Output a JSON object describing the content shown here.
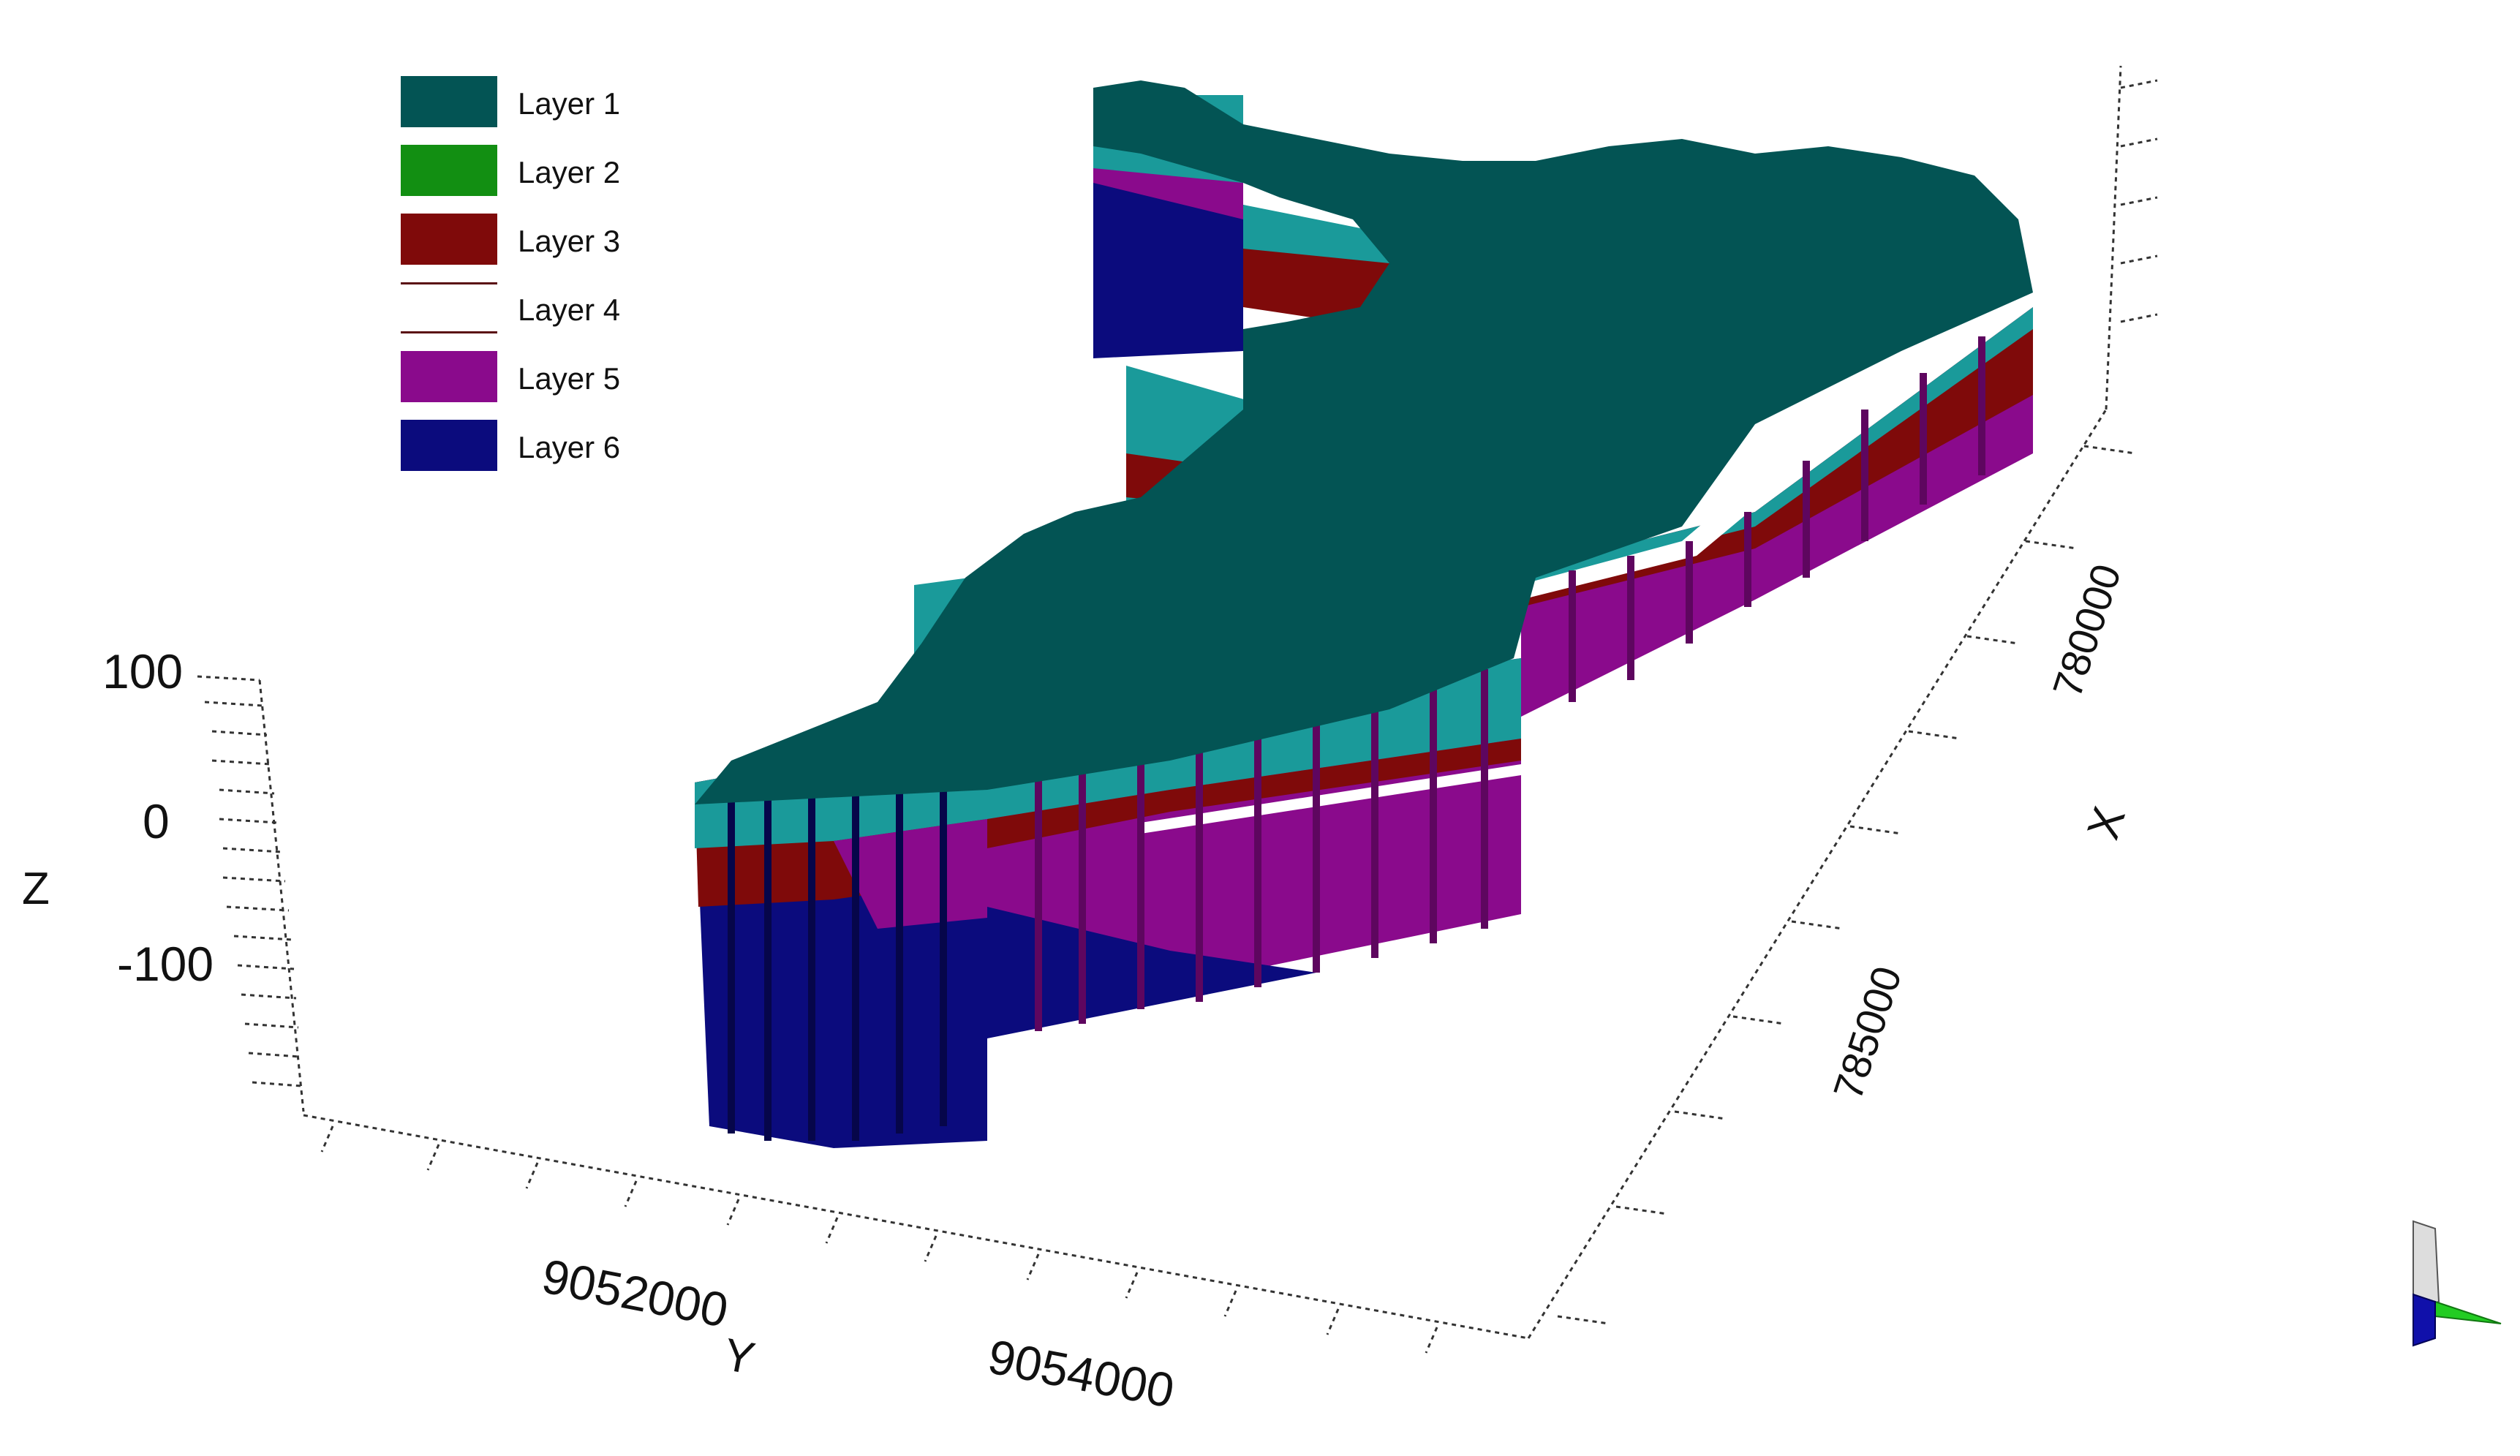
{
  "legend": {
    "items": [
      {
        "label": "Layer 1",
        "color": "#035454",
        "style": "fill"
      },
      {
        "label": "Layer 2",
        "color": "#128f12",
        "style": "fill"
      },
      {
        "label": "Layer 3",
        "color": "#7f0a0a",
        "style": "fill"
      },
      {
        "label": "Layer 4",
        "color": "#ffffff",
        "style": "line"
      },
      {
        "label": "Layer 5",
        "color": "#8a0a8c",
        "style": "fill"
      },
      {
        "label": "Layer 6",
        "color": "#0b0b7d",
        "style": "fill"
      }
    ]
  },
  "axes": {
    "z": {
      "label": "Z",
      "ticks": [
        "100",
        "0",
        "-100"
      ]
    },
    "y": {
      "label": "Y",
      "ticks": [
        "9052000",
        "9054000"
      ]
    },
    "x": {
      "label": "X",
      "ticks": [
        "780000",
        "785000"
      ]
    }
  },
  "colors": {
    "top_surface": "#035454",
    "side_teal": "#1a9a9a",
    "layer3": "#7f0a0a",
    "layer5": "#8a0a8c",
    "layer6": "#0b0b7d"
  },
  "orientation_triad": {
    "icon": "axis-triad-icon"
  }
}
